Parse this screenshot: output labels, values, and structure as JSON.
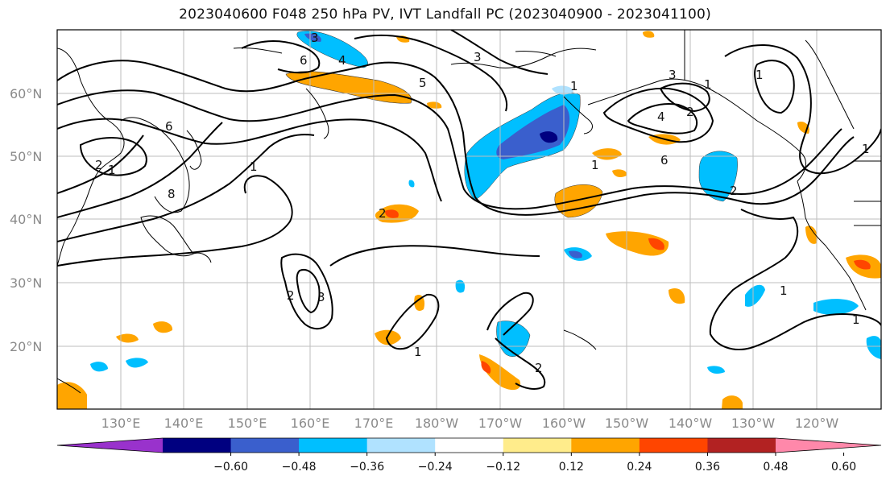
{
  "title": "2023040600 F048 250 hPa PV, IVT Landfall PC (2023040900 - 2023041100)",
  "map": {
    "lat_labels": [
      "60°N",
      "50°N",
      "40°N",
      "30°N",
      "20°N"
    ],
    "lon_labels": [
      "130°E",
      "140°E",
      "150°E",
      "160°E",
      "170°E",
      "180°W",
      "170°W",
      "160°W",
      "150°W",
      "140°W",
      "130°W",
      "120°W"
    ],
    "contour_labels": [
      "6",
      "5",
      "4",
      "3",
      "2",
      "1",
      "8",
      "6",
      "3",
      "2",
      "1",
      "2",
      "3",
      "1",
      "1",
      "4",
      "3",
      "2",
      "1",
      "1",
      "6",
      "1",
      "2",
      "1",
      "1",
      "1",
      "2"
    ]
  },
  "colorbar": {
    "tick_labels": [
      "−0.60",
      "−0.48",
      "−0.36",
      "−0.24",
      "−0.12",
      "0.12",
      "0.24",
      "0.36",
      "0.48",
      "0.60"
    ],
    "colors": [
      "#9932cc",
      "#000080",
      "#3a5fcd",
      "#00bfff",
      "#b0e2ff",
      "#ffffff",
      "#ffec8b",
      "#ffa500",
      "#ff4500",
      "#b22222",
      "#ff88aa"
    ]
  }
}
